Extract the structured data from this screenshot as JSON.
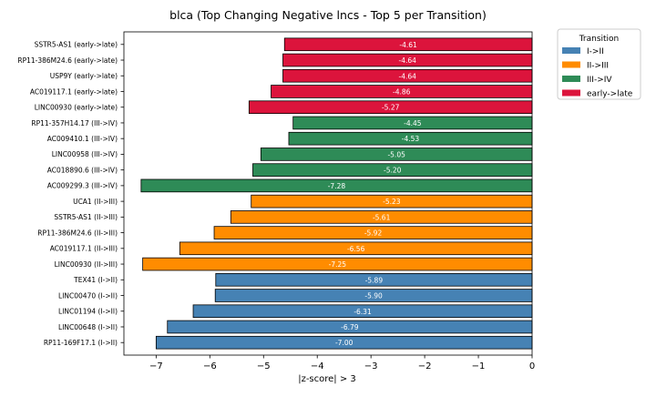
{
  "chart_data": {
    "type": "bar",
    "orientation": "horizontal",
    "title": "blca (Top Changing Negative lncs - Top 5 per Transition)",
    "xlabel": "|z-score| > 3",
    "ylabel": "",
    "xlim": [
      -7.6,
      0
    ],
    "x_ticks": [
      -7,
      -6,
      -5,
      -4,
      -3,
      -2,
      -1,
      0
    ],
    "x_tick_labels": [
      "−7",
      "−6",
      "−5",
      "−4",
      "−3",
      "−2",
      "−1",
      "0"
    ],
    "grid": false,
    "legend": {
      "title": "Transition",
      "placement": "outside-top-right",
      "entries": [
        {
          "name": "I->II",
          "color": "#4682b4"
        },
        {
          "name": "II->III",
          "color": "#ff8c00"
        },
        {
          "name": "III->IV",
          "color": "#2e8b57"
        },
        {
          "name": "early->late",
          "color": "#dc143c"
        }
      ]
    },
    "bars": [
      {
        "label": "SSTR5-AS1 (early->late)",
        "value": -4.61,
        "value_label": "-4.61",
        "group": "early->late",
        "color": "#dc143c"
      },
      {
        "label": "RP11-386M24.6 (early->late)",
        "value": -4.64,
        "value_label": "-4.64",
        "group": "early->late",
        "color": "#dc143c"
      },
      {
        "label": "USP9Y (early->late)",
        "value": -4.64,
        "value_label": "-4.64",
        "group": "early->late",
        "color": "#dc143c"
      },
      {
        "label": "AC019117.1 (early->late)",
        "value": -4.86,
        "value_label": "-4.86",
        "group": "early->late",
        "color": "#dc143c"
      },
      {
        "label": "LINC00930 (early->late)",
        "value": -5.27,
        "value_label": "-5.27",
        "group": "early->late",
        "color": "#dc143c"
      },
      {
        "label": "RP11-357H14.17 (III->IV)",
        "value": -4.45,
        "value_label": "-4.45",
        "group": "III->IV",
        "color": "#2e8b57"
      },
      {
        "label": "AC009410.1 (III->IV)",
        "value": -4.53,
        "value_label": "-4.53",
        "group": "III->IV",
        "color": "#2e8b57"
      },
      {
        "label": "LINC00958 (III->IV)",
        "value": -5.05,
        "value_label": "-5.05",
        "group": "III->IV",
        "color": "#2e8b57"
      },
      {
        "label": "AC018890.6 (III->IV)",
        "value": -5.2,
        "value_label": "-5.20",
        "group": "III->IV",
        "color": "#2e8b57"
      },
      {
        "label": "AC009299.3 (III->IV)",
        "value": -7.28,
        "value_label": "-7.28",
        "group": "III->IV",
        "color": "#2e8b57"
      },
      {
        "label": "UCA1 (II->III)",
        "value": -5.23,
        "value_label": "-5.23",
        "group": "II->III",
        "color": "#ff8c00"
      },
      {
        "label": "SSTR5-AS1 (II->III)",
        "value": -5.61,
        "value_label": "-5.61",
        "group": "II->III",
        "color": "#ff8c00"
      },
      {
        "label": "RP11-386M24.6 (II->III)",
        "value": -5.92,
        "value_label": "-5.92",
        "group": "II->III",
        "color": "#ff8c00"
      },
      {
        "label": "AC019117.1 (II->III)",
        "value": -6.56,
        "value_label": "-6.56",
        "group": "II->III",
        "color": "#ff8c00"
      },
      {
        "label": "LINC00930 (II->III)",
        "value": -7.25,
        "value_label": "-7.25",
        "group": "II->III",
        "color": "#ff8c00"
      },
      {
        "label": "TEX41 (I->II)",
        "value": -5.89,
        "value_label": "-5.89",
        "group": "I->II",
        "color": "#4682b4"
      },
      {
        "label": "LINC00470 (I->II)",
        "value": -5.9,
        "value_label": "-5.90",
        "group": "I->II",
        "color": "#4682b4"
      },
      {
        "label": "LINC01194 (I->II)",
        "value": -6.31,
        "value_label": "-6.31",
        "group": "I->II",
        "color": "#4682b4"
      },
      {
        "label": "LINC00648 (I->II)",
        "value": -6.79,
        "value_label": "-6.79",
        "group": "I->II",
        "color": "#4682b4"
      },
      {
        "label": "RP11-169F17.1 (I->II)",
        "value": -7.0,
        "value_label": "-7.00",
        "group": "I->II",
        "color": "#4682b4"
      }
    ]
  }
}
